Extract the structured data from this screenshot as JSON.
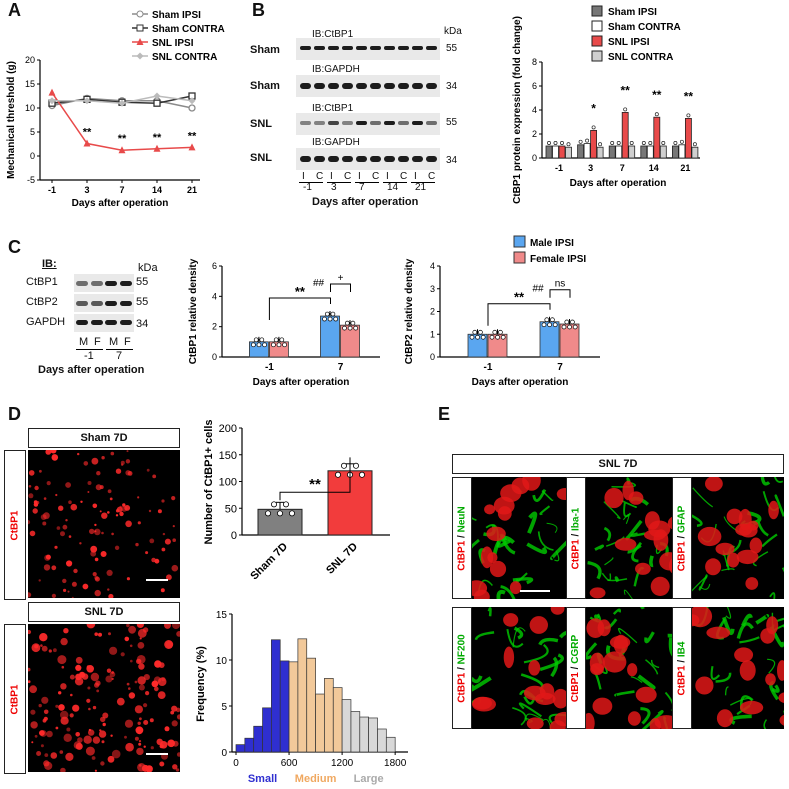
{
  "panels": {
    "A": {
      "label": "A"
    },
    "B": {
      "label": "B"
    },
    "C": {
      "label": "C"
    },
    "D": {
      "label": "D"
    },
    "E": {
      "label": "E"
    }
  },
  "colors": {
    "sham": "#888888",
    "snl_red": "#e84a4a",
    "male_blue": "#5aa6f0",
    "female_red": "#f08a8a",
    "small": "#2f2fd0",
    "medium": "#f2c99a",
    "large": "#d8d8d8",
    "green": "#00cc00"
  },
  "chart_data": [
    {
      "id": "A",
      "type": "line",
      "ylabel": "Mechanical threshold (g)",
      "xlabel": "Days after operation",
      "categories": [
        "-1",
        "3",
        "7",
        "14",
        "21"
      ],
      "ylim": [
        -5,
        20
      ],
      "yticks": [
        "-5",
        "0",
        "5",
        "10",
        "15",
        "20"
      ],
      "series": [
        {
          "name": "Sham IPSI",
          "values": [
            10.5,
            12.0,
            11.5,
            11.5,
            10.0
          ]
        },
        {
          "name": "Sham CONTRA",
          "values": [
            11.0,
            11.8,
            11.2,
            11.0,
            12.5
          ]
        },
        {
          "name": "SNL IPSI",
          "values": [
            13.2,
            2.6,
            1.2,
            1.5,
            1.8
          ]
        },
        {
          "name": "SNL CONTRA",
          "values": [
            11.5,
            11.5,
            11.0,
            12.5,
            11.5
          ]
        }
      ],
      "legend": [
        "Sham IPSI",
        "Sham CONTRA",
        "SNL IPSI",
        "SNL CONTRA"
      ],
      "annotations": [
        "**",
        "**",
        "**",
        "**"
      ]
    },
    {
      "id": "B",
      "type": "bar",
      "ylabel": "CtBP1 protein expression (fold change)",
      "xlabel": "Days after operation",
      "categories": [
        "-1",
        "3",
        "7",
        "14",
        "21"
      ],
      "ylim": [
        0,
        8
      ],
      "yticks": [
        "0",
        "2",
        "4",
        "6",
        "8"
      ],
      "series": [
        {
          "name": "Sham IPSI",
          "values": [
            1.0,
            1.1,
            1.0,
            1.0,
            1.0
          ]
        },
        {
          "name": "Sham CONTRA",
          "values": [
            1.0,
            1.2,
            1.0,
            1.0,
            1.1
          ]
        },
        {
          "name": "SNL IPSI",
          "values": [
            1.0,
            2.3,
            3.8,
            3.4,
            3.3
          ]
        },
        {
          "name": "SNL CONTRA",
          "values": [
            0.9,
            0.9,
            1.0,
            1.0,
            0.9
          ]
        }
      ],
      "legend": [
        "Sham IPSI",
        "Sham CONTRA",
        "SNL IPSI",
        "SNL CONTRA"
      ],
      "annotations": [
        "*",
        "**",
        "**",
        "**"
      ]
    },
    {
      "id": "C1",
      "type": "bar",
      "ylabel": "CtBP1 relative density",
      "xlabel": "Days after operation",
      "categories": [
        "-1",
        "7"
      ],
      "ylim": [
        0,
        6
      ],
      "yticks": [
        "0",
        "2",
        "4",
        "6"
      ],
      "series": [
        {
          "name": "Male IPSI",
          "values": [
            1.0,
            2.7
          ]
        },
        {
          "name": "Female IPSI",
          "values": [
            1.0,
            2.1
          ]
        }
      ],
      "annotations": [
        "**",
        "##",
        "+"
      ]
    },
    {
      "id": "C2",
      "type": "bar",
      "ylabel": "CtBP2 relative density",
      "xlabel": "Days after operation",
      "categories": [
        "-1",
        "7"
      ],
      "ylim": [
        0,
        4
      ],
      "yticks": [
        "0",
        "1",
        "2",
        "3",
        "4"
      ],
      "series": [
        {
          "name": "Male IPSI",
          "values": [
            1.0,
            1.55
          ]
        },
        {
          "name": "Female IPSI",
          "values": [
            1.0,
            1.45
          ]
        }
      ],
      "annotations": [
        "**",
        "##",
        "ns"
      ],
      "legend": [
        "Male IPSI",
        "Female IPSI"
      ]
    },
    {
      "id": "D1",
      "type": "bar",
      "ylabel": "Number of CtBP1+ cells",
      "categories": [
        "Sham 7D",
        "SNL 7D"
      ],
      "ylim": [
        0,
        200
      ],
      "yticks": [
        "0",
        "50",
        "100",
        "150",
        "200"
      ],
      "values": [
        48,
        120
      ],
      "annotations": [
        "**"
      ]
    },
    {
      "id": "D2",
      "type": "bar",
      "ylabel": "Frequency (%)",
      "xlabel": "",
      "ylim": [
        0,
        15
      ],
      "yticks": [
        "0",
        "5",
        "10",
        "15"
      ],
      "xticks": [
        "0",
        "600",
        "1200",
        "1800"
      ],
      "bins_start": 0,
      "bin_width": 100,
      "values": [
        0.8,
        1.5,
        2.8,
        4.8,
        12.2,
        9.9,
        9.8,
        12.3,
        10.2,
        6.3,
        8.0,
        7.0,
        5.7,
        4.4,
        3.8,
        3.7,
        2.5,
        1.6
      ],
      "size_labels": [
        "Small",
        "Medium",
        "Large"
      ]
    }
  ],
  "panel_b": {
    "kda": "kDa",
    "rows": [
      {
        "side": "Sham",
        "ib": "IB:CtBP1",
        "kda": "55"
      },
      {
        "side": "Sham",
        "ib": "IB:GAPDH",
        "kda": "34"
      },
      {
        "side": "SNL",
        "ib": "IB:CtBP1",
        "kda": "55"
      },
      {
        "side": "SNL",
        "ib": "IB:GAPDH",
        "kda": "34"
      }
    ],
    "lanes": [
      "I",
      "C",
      "I",
      "C",
      "I",
      "C",
      "I",
      "C",
      "I",
      "C"
    ],
    "days": [
      "-1",
      "3",
      "7",
      "14",
      "21"
    ],
    "xlabel": "Days after operation"
  },
  "panel_c_blot": {
    "ib": "IB:",
    "kda": "kDa",
    "rows": [
      {
        "name": "CtBP1",
        "kda": "55"
      },
      {
        "name": "CtBP2",
        "kda": "55"
      },
      {
        "name": "GAPDH",
        "kda": "34"
      }
    ],
    "lanes": [
      "M",
      "F",
      "M",
      "F"
    ],
    "days": [
      "-1",
      "7"
    ],
    "xlabel": "Days after operation"
  },
  "panel_d": {
    "sham_label": "Sham 7D",
    "snl_label": "SNL 7D",
    "stain": "CtBP1"
  },
  "panel_e": {
    "title": "SNL 7D",
    "tiles": [
      {
        "red": "CtBP1",
        "sep": " / ",
        "green": "NeuN"
      },
      {
        "red": "CtBP1",
        "sep": " / ",
        "green": "Iba-1"
      },
      {
        "red": "CtBP1",
        "sep": " / ",
        "green": "GFAP"
      },
      {
        "red": "CtBP1",
        "sep": " / ",
        "green": "NF200"
      },
      {
        "red": "CtBP1",
        "sep": " / ",
        "green": "CGRP"
      },
      {
        "red": "CtBP1",
        "sep": " / ",
        "green": "IB4"
      }
    ]
  }
}
